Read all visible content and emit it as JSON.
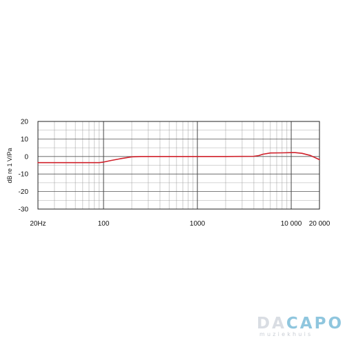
{
  "chart_data": {
    "type": "line",
    "title": "",
    "xlabel": "",
    "ylabel": "dB re 1 V/Pa",
    "x_scale": "log",
    "xlim": [
      20,
      20000
    ],
    "ylim": [
      -30,
      20
    ],
    "x_ticks": [
      {
        "value": 20,
        "label": "20Hz"
      },
      {
        "value": 100,
        "label": "100"
      },
      {
        "value": 1000,
        "label": "1000"
      },
      {
        "value": 10000,
        "label": "10 000"
      },
      {
        "value": 20000,
        "label": "20 000"
      }
    ],
    "y_ticks": [
      {
        "value": 20,
        "label": "20"
      },
      {
        "value": 10,
        "label": "10"
      },
      {
        "value": 0,
        "label": "0"
      },
      {
        "value": -10,
        "label": "-10"
      },
      {
        "value": -20,
        "label": "-20"
      },
      {
        "value": -30,
        "label": "-30"
      }
    ],
    "grid": true,
    "series": [
      {
        "name": "",
        "color": "#d0202a",
        "x": [
          20,
          50,
          90,
          100,
          120,
          150,
          200,
          250,
          500,
          1000,
          2000,
          4000,
          4500,
          5000,
          6000,
          8000,
          10000,
          11000,
          13000,
          16000,
          20000
        ],
        "y": [
          -3.5,
          -3.5,
          -3.5,
          -3.2,
          -2.3,
          -1.3,
          -0.2,
          0,
          0,
          0,
          0,
          0.1,
          0.5,
          1.3,
          2.0,
          2.1,
          2.2,
          2.2,
          1.8,
          0.6,
          -1.8
        ]
      }
    ]
  },
  "logo": {
    "name_part1": "DA",
    "name_part2": "CAPO",
    "tagline": "muziekhuis"
  }
}
